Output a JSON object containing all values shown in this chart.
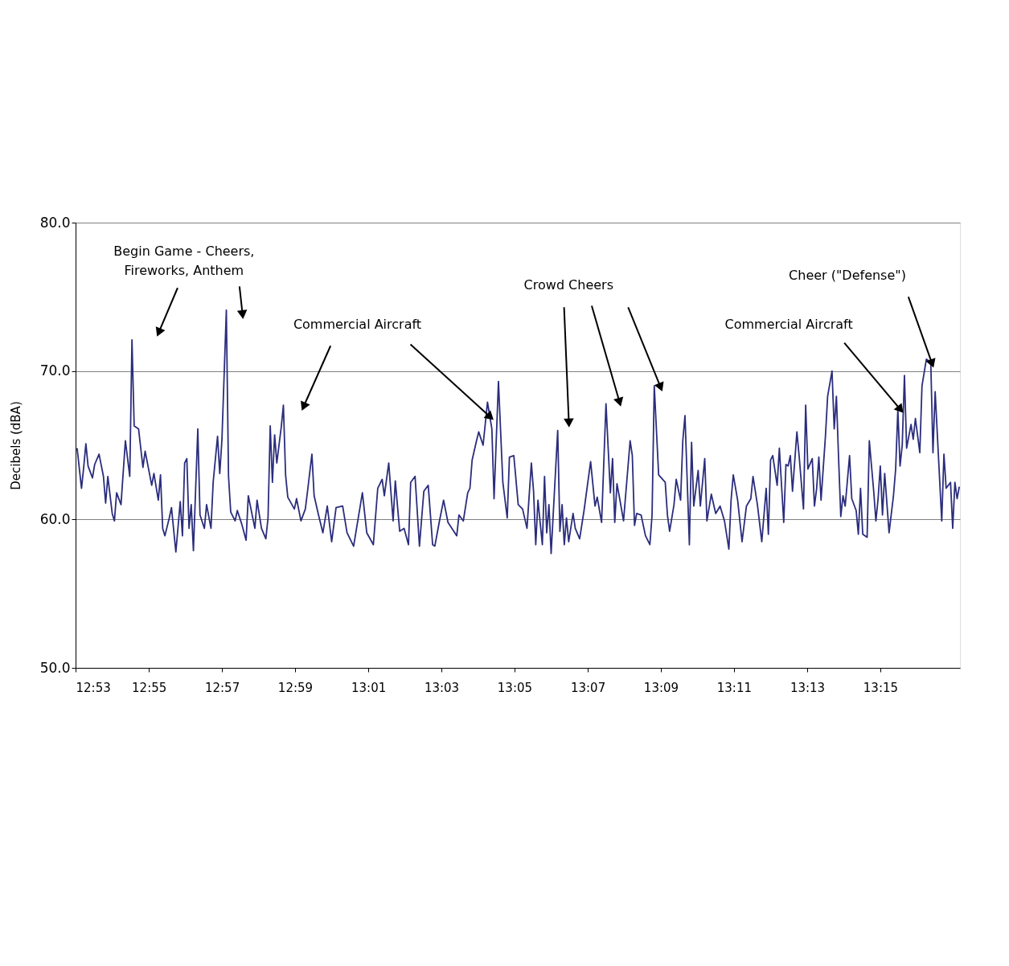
{
  "chart_data": {
    "type": "line",
    "ylabel": "Decibels (dBA)",
    "color": "#2b2d7c",
    "line_style": "solid",
    "marker": "none",
    "grid": "y",
    "xlim": [
      12.8833,
      13.2863
    ],
    "xticks": [
      {
        "value": 12.8833,
        "label": "12:53"
      },
      {
        "value": 12.9167,
        "label": "12:55"
      },
      {
        "value": 12.95,
        "label": "12:57"
      },
      {
        "value": 12.9833,
        "label": "12:59"
      },
      {
        "value": 13.0167,
        "label": "13:01"
      },
      {
        "value": 13.05,
        "label": "13:03"
      },
      {
        "value": 13.0833,
        "label": "13:05"
      },
      {
        "value": 13.1167,
        "label": "13:07"
      },
      {
        "value": 13.15,
        "label": "13:09"
      },
      {
        "value": 13.1833,
        "label": "13:11"
      },
      {
        "value": 13.2167,
        "label": "13:13"
      },
      {
        "value": 13.25,
        "label": "13:15"
      }
    ],
    "ylim": [
      50,
      80
    ],
    "yticks": [
      {
        "value": 50,
        "label": "50.0"
      },
      {
        "value": 60,
        "label": "60.0"
      },
      {
        "value": 70,
        "label": "70.0"
      },
      {
        "value": 80,
        "label": "80.0"
      }
    ],
    "annotations": [
      {
        "text": "Begin Game - Cheers,\nFireworks, Anthem",
        "x": 12.9212,
        "y": 72.6
      },
      {
        "text": "Commercial Aircraft",
        "x": 13.0723,
        "y": 66.9
      },
      {
        "text": "Crowd Cheers",
        "x": 13.1081,
        "y": 66.5
      },
      {
        "text": "Commercial Aircraft",
        "x": 13.2592,
        "y": 67.4
      },
      {
        "text": "Cheer (\"Defense\")",
        "x": 13.2736,
        "y": 70.5
      }
    ],
    "x": [
      12.884,
      12.886,
      12.887,
      12.888,
      12.889,
      12.891,
      12.892,
      12.894,
      12.896,
      12.897,
      12.898,
      12.9,
      12.901,
      12.902,
      12.904,
      12.906,
      12.908,
      12.909,
      12.91,
      12.912,
      12.914,
      12.915,
      12.918,
      12.919,
      12.921,
      12.922,
      12.923,
      12.924,
      12.926,
      12.927,
      12.929,
      12.931,
      12.932,
      12.933,
      12.934,
      12.935,
      12.936,
      12.937,
      12.939,
      12.94,
      12.942,
      12.943,
      12.945,
      12.946,
      12.948,
      12.949,
      12.95,
      12.952,
      12.953,
      12.954,
      12.956,
      12.957,
      12.959,
      12.961,
      12.962,
      12.965,
      12.966,
      12.968,
      12.97,
      12.971,
      12.972,
      12.973,
      12.974,
      12.975,
      12.977,
      12.978,
      12.979,
      12.98,
      12.983,
      12.984,
      12.986,
      12.988,
      12.989,
      12.991,
      12.992,
      12.994,
      12.996,
      12.998,
      13.0,
      13.002,
      13.005,
      13.007,
      13.01,
      13.014,
      13.016,
      13.019,
      13.021,
      13.023,
      13.024,
      13.026,
      13.028,
      13.029,
      13.031,
      13.033,
      13.035,
      13.036,
      13.038,
      13.04,
      13.042,
      13.044,
      13.046,
      13.047,
      13.049,
      13.051,
      13.053,
      13.057,
      13.058,
      13.06,
      13.062,
      13.063,
      13.064,
      13.066,
      13.067,
      13.069,
      13.071,
      13.073,
      13.074,
      13.076,
      13.078,
      13.08,
      13.081,
      13.083,
      13.085,
      13.087,
      13.089,
      13.091,
      13.092,
      13.093,
      13.094,
      13.096,
      13.097,
      13.098,
      13.099,
      13.1,
      13.103,
      13.104,
      13.105,
      13.106,
      13.107,
      13.108,
      13.11,
      13.111,
      13.113,
      13.115,
      13.117,
      13.118,
      13.12,
      13.121,
      13.123,
      13.125,
      13.127,
      13.128,
      13.129,
      13.13,
      13.131,
      13.133,
      13.136,
      13.137,
      13.138,
      13.139,
      13.141,
      13.143,
      13.145,
      13.146,
      13.147,
      13.149,
      13.152,
      13.153,
      13.154,
      13.156,
      13.157,
      13.159,
      13.16,
      13.161,
      13.163,
      13.164,
      13.165,
      13.167,
      13.168,
      13.17,
      13.171,
      13.173,
      13.175,
      13.177,
      13.179,
      13.181,
      13.182,
      13.183,
      13.185,
      13.187,
      13.189,
      13.191,
      13.192,
      13.194,
      13.196,
      13.198,
      13.199,
      13.2,
      13.201,
      13.203,
      13.204,
      13.206,
      13.207,
      13.208,
      13.209,
      13.21,
      13.212,
      13.213,
      13.215,
      13.216,
      13.217,
      13.219,
      13.22,
      13.221,
      13.222,
      13.223,
      13.225,
      13.226,
      13.228,
      13.229,
      13.23,
      13.231,
      13.232,
      13.233,
      13.234,
      13.236,
      13.237,
      13.239,
      13.24,
      13.241,
      13.242,
      13.244,
      13.245,
      13.247,
      13.248,
      13.249,
      13.25,
      13.251,
      13.252,
      13.254,
      13.256,
      13.257,
      13.258,
      13.259,
      13.26,
      13.261,
      13.262,
      13.264,
      13.265,
      13.266,
      13.268,
      13.269,
      13.271,
      13.273,
      13.274,
      13.275,
      13.278,
      13.279,
      13.28,
      13.282,
      13.283,
      13.284,
      13.285,
      13.286
    ],
    "values": [
      64.8,
      62.1,
      63.5,
      65.1,
      63.6,
      62.8,
      63.7,
      64.4,
      62.9,
      61.1,
      62.9,
      60.4,
      59.9,
      61.8,
      61.0,
      65.3,
      62.9,
      72.1,
      66.3,
      66.1,
      63.5,
      64.6,
      62.3,
      63.1,
      61.3,
      63.0,
      59.4,
      58.9,
      60.1,
      60.8,
      57.8,
      61.2,
      58.9,
      63.8,
      64.1,
      59.4,
      61.0,
      57.9,
      66.1,
      60.3,
      59.4,
      61.0,
      59.4,
      62.5,
      65.6,
      63.1,
      65.4,
      74.1,
      62.9,
      60.5,
      59.9,
      60.6,
      59.7,
      58.6,
      61.6,
      59.4,
      61.3,
      59.4,
      58.7,
      60.1,
      66.3,
      62.5,
      65.7,
      63.8,
      66.2,
      67.7,
      63.0,
      61.5,
      60.7,
      61.4,
      59.9,
      60.7,
      61.9,
      64.4,
      61.6,
      60.3,
      59.1,
      60.9,
      58.5,
      60.8,
      60.9,
      59.1,
      58.2,
      61.8,
      59.1,
      58.3,
      62.1,
      62.7,
      61.6,
      63.8,
      59.9,
      62.6,
      59.2,
      59.4,
      58.3,
      62.5,
      62.9,
      58.2,
      61.9,
      62.3,
      58.3,
      58.2,
      59.8,
      61.3,
      59.8,
      58.9,
      60.3,
      59.9,
      61.8,
      62.1,
      64.0,
      65.3,
      65.9,
      65.0,
      67.9,
      66.1,
      61.4,
      69.3,
      62.5,
      60.1,
      64.2,
      64.3,
      61.0,
      60.7,
      59.4,
      63.8,
      61.9,
      58.3,
      61.3,
      58.3,
      62.9,
      59.1,
      61.0,
      57.7,
      66.0,
      59.2,
      61.0,
      58.3,
      60.1,
      58.5,
      60.4,
      59.4,
      58.7,
      60.6,
      62.8,
      63.9,
      60.9,
      61.5,
      59.8,
      67.8,
      61.8,
      64.1,
      59.8,
      62.4,
      61.6,
      59.9,
      65.3,
      64.3,
      59.6,
      60.4,
      60.3,
      58.9,
      58.3,
      60.3,
      69.0,
      63.0,
      62.5,
      60.3,
      59.2,
      61.0,
      62.7,
      61.3,
      65.3,
      67.0,
      58.3,
      65.2,
      60.9,
      63.3,
      60.9,
      64.1,
      59.9,
      61.7,
      60.4,
      60.9,
      59.9,
      58.0,
      61.3,
      63.0,
      61.3,
      58.5,
      60.9,
      61.4,
      62.9,
      61.0,
      58.5,
      62.1,
      59.0,
      64.0,
      64.3,
      62.3,
      64.8,
      59.8,
      63.7,
      63.6,
      64.3,
      61.9,
      65.9,
      64.3,
      60.7,
      67.7,
      63.4,
      64.1,
      60.9,
      62.1,
      64.2,
      61.3,
      65.6,
      68.3,
      70.0,
      66.1,
      68.3,
      64.1,
      60.2,
      61.6,
      60.9,
      64.3,
      61.4,
      60.6,
      59.0,
      62.1,
      59.0,
      58.8,
      65.3,
      61.9,
      59.9,
      61.4,
      63.6,
      60.3,
      63.1,
      59.1,
      61.6,
      63.4,
      67.4,
      63.6,
      65.0,
      69.7,
      64.8,
      66.4,
      65.4,
      66.8,
      64.5,
      69.0,
      70.8,
      70.6,
      64.5,
      68.6,
      59.9,
      64.4,
      62.1,
      62.5,
      59.4,
      62.5,
      61.4,
      62.2
    ]
  }
}
